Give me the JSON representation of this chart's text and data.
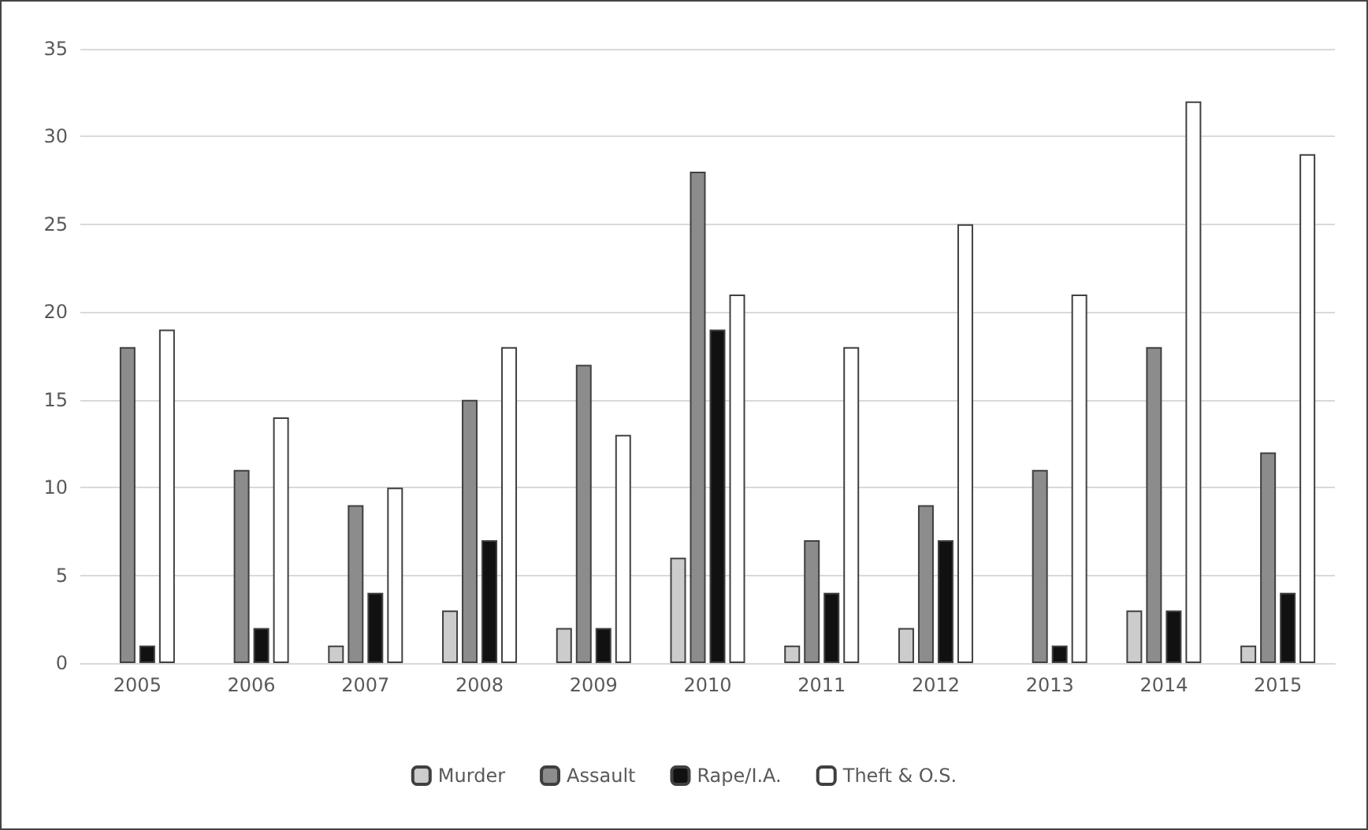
{
  "chart_data": {
    "type": "bar",
    "categories": [
      "2005",
      "2006",
      "2007",
      "2008",
      "2009",
      "2010",
      "2011",
      "2012",
      "2013",
      "2014",
      "2015"
    ],
    "series": [
      {
        "name": "Murder",
        "color": "#cccccc",
        "values": [
          0,
          0,
          1,
          3,
          2,
          6,
          1,
          2,
          0,
          3,
          1
        ]
      },
      {
        "name": "Assault",
        "color": "#8c8c8c",
        "values": [
          18,
          11,
          9,
          15,
          17,
          28,
          7,
          9,
          11,
          18,
          12
        ]
      },
      {
        "name": "Rape/I.A.",
        "color": "#111111",
        "values": [
          1,
          2,
          4,
          7,
          2,
          19,
          4,
          7,
          1,
          3,
          4
        ]
      },
      {
        "name": "Theft & O.S.",
        "color": "#ffffff",
        "values": [
          19,
          14,
          10,
          18,
          13,
          21,
          18,
          25,
          21,
          32,
          29
        ]
      }
    ],
    "ylim": [
      0,
      35
    ],
    "yticks": [
      0,
      5,
      10,
      15,
      20,
      25,
      30,
      35
    ],
    "grid": "y",
    "legend": "bottom"
  }
}
